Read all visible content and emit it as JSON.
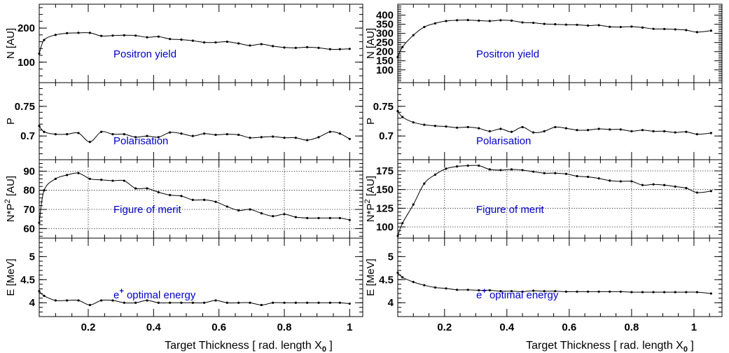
{
  "chart_data": [
    {
      "type": "line",
      "column": "left",
      "xlabel": "Target Thickness [ rad. length X",
      "xlabel_sub": "0",
      "xlim": [
        0.05,
        1.04
      ],
      "xticks": [
        0.2,
        0.4,
        0.6,
        0.8,
        1
      ],
      "xtick_labels": [
        "0.2",
        "0.4",
        "0.6",
        "0.8",
        "1"
      ],
      "panels": [
        {
          "ylabel": "N [AU]",
          "ylim": [
            40,
            270
          ],
          "yticks": [
            100,
            200
          ],
          "ytick_labels": [
            "100",
            "200"
          ],
          "grid": false,
          "annotation": "Positron yield",
          "x": [
            0.05,
            0.065,
            0.1,
            0.135,
            0.17,
            0.205,
            0.24,
            0.275,
            0.31,
            0.345,
            0.38,
            0.415,
            0.45,
            0.485,
            0.52,
            0.555,
            0.59,
            0.625,
            0.66,
            0.695,
            0.73,
            0.765,
            0.8,
            0.835,
            0.87,
            0.905,
            0.94,
            0.97,
            1.0
          ],
          "y": [
            125,
            165,
            180,
            185,
            186,
            186,
            177,
            178,
            179,
            178,
            173,
            175,
            168,
            166,
            163,
            158,
            158,
            160,
            155,
            149,
            153,
            147,
            143,
            142,
            144,
            142,
            138,
            138,
            139
          ]
        },
        {
          "ylabel": "P",
          "ylim": [
            0.66,
            0.79
          ],
          "yticks": [
            0.7,
            0.75
          ],
          "ytick_labels": [
            "0.7",
            "0.75"
          ],
          "grid": false,
          "annotation": "Polarisation",
          "x": [
            0.05,
            0.065,
            0.1,
            0.135,
            0.17,
            0.205,
            0.24,
            0.275,
            0.31,
            0.345,
            0.38,
            0.415,
            0.45,
            0.485,
            0.52,
            0.555,
            0.59,
            0.625,
            0.66,
            0.695,
            0.73,
            0.765,
            0.8,
            0.835,
            0.87,
            0.905,
            0.94,
            0.97,
            1.0
          ],
          "y": [
            0.717,
            0.707,
            0.703,
            0.703,
            0.705,
            0.69,
            0.707,
            0.703,
            0.703,
            0.698,
            0.7,
            0.698,
            0.706,
            0.704,
            0.7,
            0.704,
            0.702,
            0.703,
            0.702,
            0.697,
            0.698,
            0.699,
            0.697,
            0.697,
            0.693,
            0.698,
            0.707,
            0.704,
            0.695
          ]
        },
        {
          "ylabel": "N*P² [AU]",
          "ylim": [
            55,
            96
          ],
          "yticks": [
            60,
            70,
            80,
            90
          ],
          "ytick_labels": [
            "60",
            "70",
            "80",
            "90"
          ],
          "grid": true,
          "annotation": "Figure of merit",
          "x": [
            0.05,
            0.065,
            0.1,
            0.135,
            0.17,
            0.205,
            0.24,
            0.275,
            0.31,
            0.345,
            0.38,
            0.415,
            0.45,
            0.485,
            0.52,
            0.555,
            0.59,
            0.625,
            0.66,
            0.695,
            0.73,
            0.765,
            0.8,
            0.835,
            0.87,
            0.905,
            0.94,
            0.97,
            1.0
          ],
          "y": [
            63,
            80,
            86,
            88,
            89,
            86,
            85.5,
            85,
            85,
            81,
            81,
            79,
            77.5,
            77,
            75,
            75,
            74,
            71.5,
            69.5,
            70,
            68,
            66.5,
            67.5,
            66,
            65.5,
            65.5,
            65.5,
            65.5,
            64.5
          ]
        },
        {
          "ylabel": "E [MeV]",
          "ylim": [
            3.7,
            5.4
          ],
          "yticks": [
            4,
            4.5,
            5
          ],
          "ytick_labels": [
            "4",
            "4.5",
            "5"
          ],
          "grid": false,
          "annotation": "e",
          "annotation_sup": "+",
          "annotation_rest": " optimal energy",
          "x": [
            0.05,
            0.065,
            0.1,
            0.135,
            0.17,
            0.205,
            0.24,
            0.275,
            0.31,
            0.345,
            0.38,
            0.415,
            0.45,
            0.485,
            0.52,
            0.555,
            0.59,
            0.625,
            0.66,
            0.695,
            0.73,
            0.765,
            0.8,
            0.835,
            0.87,
            0.905,
            0.94,
            0.97,
            1.0
          ],
          "y": [
            4.25,
            4.15,
            4.05,
            4.05,
            4.05,
            3.95,
            4.05,
            4.05,
            4.0,
            4.0,
            4.05,
            4.0,
            4.0,
            4.0,
            4.0,
            4.0,
            4.05,
            4.0,
            4.0,
            4.0,
            3.95,
            4.0,
            4.0,
            4.0,
            4.0,
            4.0,
            4.0,
            4.0,
            3.98
          ]
        }
      ]
    },
    {
      "type": "line",
      "column": "right",
      "xlabel": "Target Thickness [ rad. length X",
      "xlabel_sub": "0",
      "xlim": [
        0.05,
        1.09
      ],
      "xticks": [
        0.2,
        0.4,
        0.6,
        0.8,
        1
      ],
      "xtick_labels": [
        "0.2",
        "0.4",
        "0.6",
        "0.8",
        "1"
      ],
      "panels": [
        {
          "ylabel": "N [AU]",
          "ylim": [
            30,
            460
          ],
          "yticks": [
            100,
            150,
            200,
            250,
            300,
            350,
            400
          ],
          "ytick_labels": [
            "100",
            "150",
            "200",
            "250",
            "300",
            "350",
            "400"
          ],
          "grid": false,
          "annotation": "Positron yield",
          "x": [
            0.05,
            0.065,
            0.1,
            0.135,
            0.17,
            0.205,
            0.24,
            0.275,
            0.31,
            0.345,
            0.38,
            0.415,
            0.45,
            0.485,
            0.52,
            0.555,
            0.59,
            0.625,
            0.66,
            0.695,
            0.73,
            0.765,
            0.8,
            0.835,
            0.87,
            0.905,
            0.94,
            0.975,
            1.01,
            1.055
          ],
          "y": [
            170,
            225,
            290,
            335,
            355,
            368,
            372,
            373,
            370,
            368,
            372,
            370,
            360,
            358,
            352,
            350,
            348,
            347,
            343,
            345,
            336,
            335,
            337,
            332,
            325,
            324,
            322,
            318,
            307,
            315
          ]
        },
        {
          "ylabel": "P",
          "ylim": [
            0.66,
            0.79
          ],
          "yticks": [
            0.7,
            0.75
          ],
          "ytick_labels": [
            "0.7",
            "0.75"
          ],
          "grid": false,
          "annotation": "Polarisation",
          "x": [
            0.05,
            0.065,
            0.1,
            0.135,
            0.17,
            0.205,
            0.24,
            0.275,
            0.31,
            0.345,
            0.38,
            0.415,
            0.45,
            0.485,
            0.52,
            0.555,
            0.59,
            0.625,
            0.66,
            0.695,
            0.73,
            0.765,
            0.8,
            0.835,
            0.87,
            0.905,
            0.94,
            0.975,
            1.01,
            1.055
          ],
          "y": [
            0.742,
            0.732,
            0.723,
            0.719,
            0.717,
            0.716,
            0.714,
            0.715,
            0.713,
            0.708,
            0.712,
            0.707,
            0.715,
            0.706,
            0.708,
            0.715,
            0.713,
            0.71,
            0.71,
            0.712,
            0.711,
            0.711,
            0.708,
            0.71,
            0.708,
            0.708,
            0.706,
            0.707,
            0.703,
            0.705
          ]
        },
        {
          "ylabel": "N*P² [AU]",
          "ylim": [
            85,
            190
          ],
          "yticks": [
            100,
            125,
            150,
            175
          ],
          "ytick_labels": [
            "100",
            "125",
            "150",
            "175"
          ],
          "grid": true,
          "annotation": "Figure of merit",
          "x": [
            0.05,
            0.065,
            0.1,
            0.135,
            0.17,
            0.205,
            0.24,
            0.275,
            0.31,
            0.345,
            0.38,
            0.415,
            0.45,
            0.485,
            0.52,
            0.555,
            0.59,
            0.625,
            0.66,
            0.695,
            0.73,
            0.765,
            0.8,
            0.835,
            0.87,
            0.905,
            0.94,
            0.975,
            1.01,
            1.055
          ],
          "y": [
            88,
            105,
            130,
            158,
            170,
            178,
            181,
            182,
            182,
            177,
            176,
            177,
            176,
            174,
            172,
            172,
            171,
            168,
            167,
            165,
            162,
            161,
            161,
            156,
            157,
            156,
            154,
            152,
            146,
            148
          ]
        },
        {
          "ylabel": "E [MeV]",
          "ylim": [
            3.7,
            5.4
          ],
          "yticks": [
            4,
            4.5,
            5
          ],
          "ytick_labels": [
            "4",
            "4.5",
            "5"
          ],
          "grid": false,
          "annotation": "e",
          "annotation_sup": "+",
          "annotation_rest": " optimal energy",
          "x": [
            0.05,
            0.065,
            0.1,
            0.135,
            0.17,
            0.205,
            0.24,
            0.275,
            0.31,
            0.345,
            0.38,
            0.415,
            0.45,
            0.485,
            0.52,
            0.555,
            0.59,
            0.625,
            0.66,
            0.695,
            0.73,
            0.765,
            0.8,
            0.835,
            0.87,
            0.905,
            0.94,
            0.975,
            1.01,
            1.055
          ],
          "y": [
            4.65,
            4.55,
            4.45,
            4.38,
            4.33,
            4.31,
            4.28,
            4.28,
            4.27,
            4.27,
            4.25,
            4.25,
            4.24,
            4.26,
            4.25,
            4.25,
            4.24,
            4.24,
            4.24,
            4.24,
            4.24,
            4.24,
            4.23,
            4.23,
            4.23,
            4.23,
            4.23,
            4.23,
            4.23,
            4.2
          ]
        }
      ]
    }
  ]
}
